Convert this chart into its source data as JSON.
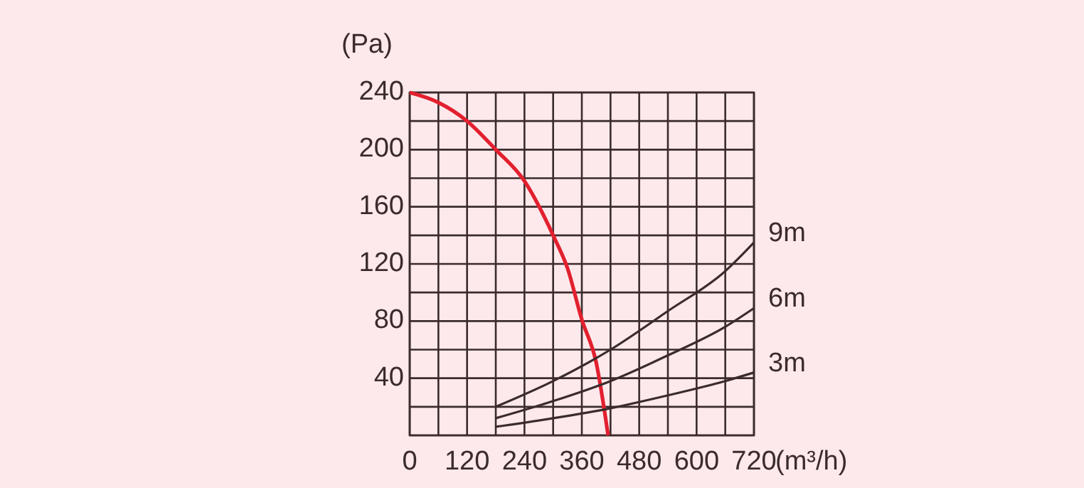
{
  "chart_data": {
    "type": "line",
    "xlabel": "(m³/h)",
    "ylabel": "(Pa)",
    "xlim": [
      0,
      720
    ],
    "ylim": [
      0,
      240
    ],
    "xticks": [
      0,
      {
        "value": 60,
        "label": null
      },
      120,
      {
        "value": 180,
        "label": null
      },
      240,
      {
        "value": 300,
        "label": null
      },
      360,
      {
        "value": 420,
        "label": null
      },
      480,
      {
        "value": 540,
        "label": null
      },
      600,
      {
        "value": 660,
        "label": null
      },
      720
    ],
    "yticks": [
      {
        "value": 0,
        "label": null
      },
      {
        "value": 20,
        "label": null
      },
      40,
      {
        "value": 60,
        "label": null
      },
      80,
      {
        "value": 100,
        "label": null
      },
      120,
      {
        "value": 140,
        "label": null
      },
      160,
      {
        "value": 180,
        "label": null
      },
      200,
      {
        "value": 220,
        "label": null
      },
      240
    ],
    "grid": true,
    "line_style": "solid",
    "marker": "none",
    "series": [
      {
        "color": "#e2202f",
        "x": [
          0,
          60,
          120,
          180,
          240,
          300,
          330,
          360,
          390,
          415
        ],
        "values": [
          240,
          233,
          220,
          200,
          178,
          140,
          117,
          81,
          51,
          0
        ]
      },
      {
        "name": "9m",
        "color": "#3b2b2d",
        "x": [
          180,
          300,
          420,
          540,
          660,
          720
        ],
        "values": [
          20,
          38,
          60,
          87,
          115,
          135
        ]
      },
      {
        "name": "6m",
        "color": "#3b2b2d",
        "x": [
          180,
          300,
          420,
          540,
          660,
          720
        ],
        "values": [
          12,
          24,
          38,
          56,
          76,
          89
        ]
      },
      {
        "name": "3m",
        "color": "#3b2b2d",
        "x": [
          180,
          300,
          420,
          540,
          660,
          720
        ],
        "values": [
          6,
          12,
          19,
          28,
          38,
          44
        ]
      }
    ]
  }
}
